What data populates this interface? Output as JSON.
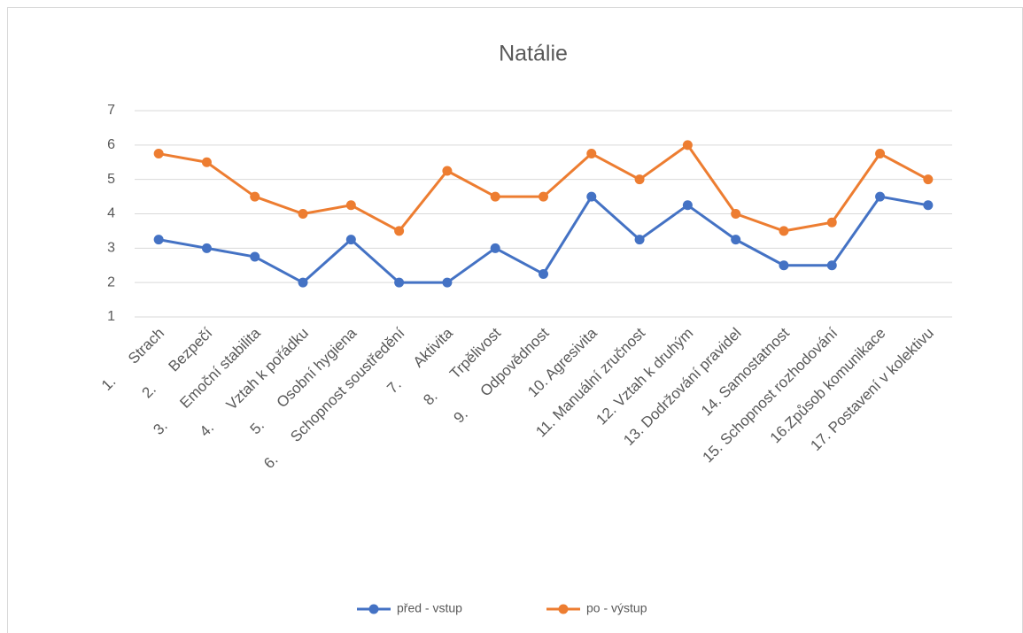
{
  "chart_data": {
    "type": "line",
    "title": "Natálie",
    "categories": [
      "1.      Strach",
      "2.      Bezpečí",
      "3.      Emoční stabilita",
      "4.      Vztah k pořádku",
      "5.      Osobní hygiena",
      "6.      Schopnost soustředění",
      "7.      Aktivita",
      "8.      Trpělivost",
      "9.      Odpovědnost",
      "10. Agresivita",
      "11. Manuální zručnost",
      "12. Vztah k druhým",
      "13. Dodržování pravidel",
      "14. Samostatnost",
      "15. Schopnost rozhodování",
      "16.Způsob komunikace",
      "17. Postavení v kolektivu"
    ],
    "series": [
      {
        "name": "před - vstup",
        "color": "#4472c4",
        "values": [
          3.25,
          3,
          2.75,
          2,
          3.25,
          2,
          2,
          3,
          2.25,
          4.5,
          3.25,
          4.25,
          3.25,
          2.5,
          2.5,
          4.5,
          4.25
        ]
      },
      {
        "name": "po - výstup",
        "color": "#ed7d31",
        "values": [
          5.75,
          5.5,
          4.5,
          4,
          4.25,
          3.5,
          5.25,
          4.5,
          4.5,
          5.75,
          5,
          6,
          4,
          3.5,
          3.75,
          5.75,
          5
        ]
      }
    ],
    "ylim": [
      1,
      7
    ],
    "yticks": [
      1,
      2,
      3,
      4,
      5,
      6,
      7
    ],
    "grid": true,
    "legend": "bottom"
  }
}
